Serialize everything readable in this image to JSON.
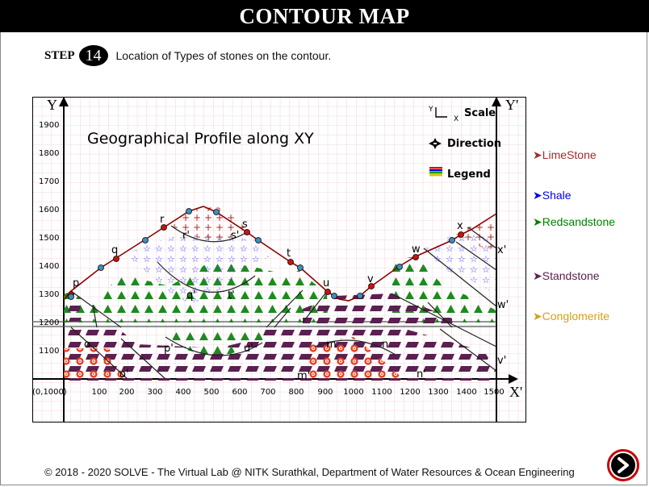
{
  "header": {
    "title": "CONTOUR MAP"
  },
  "step": {
    "word": "STEP",
    "number": "14",
    "text": "Location of Types of stones on the contour."
  },
  "diagram": {
    "heading": "Geographical Profile along XY",
    "axis_left": "Y",
    "axis_right": "Y'",
    "axis_x_end": "X'",
    "origin_label": "(0,1000)",
    "y_ticks": [
      "1900",
      "1800",
      "1700",
      "1600",
      "1500",
      "1400",
      "1300",
      "1200",
      "1100"
    ],
    "x_ticks": [
      "100",
      "200",
      "300",
      "400",
      "500",
      "600",
      "700",
      "800",
      "900",
      "1000",
      "1100",
      "1200",
      "1300",
      "1400",
      "1500"
    ],
    "scale_label": "Scale",
    "scale_y": "Y",
    "scale_x": "X",
    "direction_label": "Direction",
    "legend_label": "Legend",
    "point_labels": [
      "p",
      "q",
      "r",
      "r'",
      "s",
      "s'",
      "t",
      "u",
      "v",
      "w",
      "x",
      "x'",
      "w'",
      "q'",
      "t'",
      "o",
      "o'",
      "p'",
      "u'",
      "m",
      "n",
      "m'",
      "n'",
      "v'"
    ]
  },
  "legend": [
    {
      "name": "LimeStone",
      "color": "#a52a2a"
    },
    {
      "name": "Shale",
      "color": "#0000ee"
    },
    {
      "name": "Redsandstone",
      "color": "#008000"
    },
    {
      "name": "Standstone",
      "color": "#5a2050"
    },
    {
      "name": "Conglomerite",
      "color": "#d4a017"
    }
  ],
  "footer": {
    "text": "© 2018 - 2020 SOLVE - The Virtual Lab @ NITK Surathkal, Department of Water Resources & Ocean Engineering"
  }
}
